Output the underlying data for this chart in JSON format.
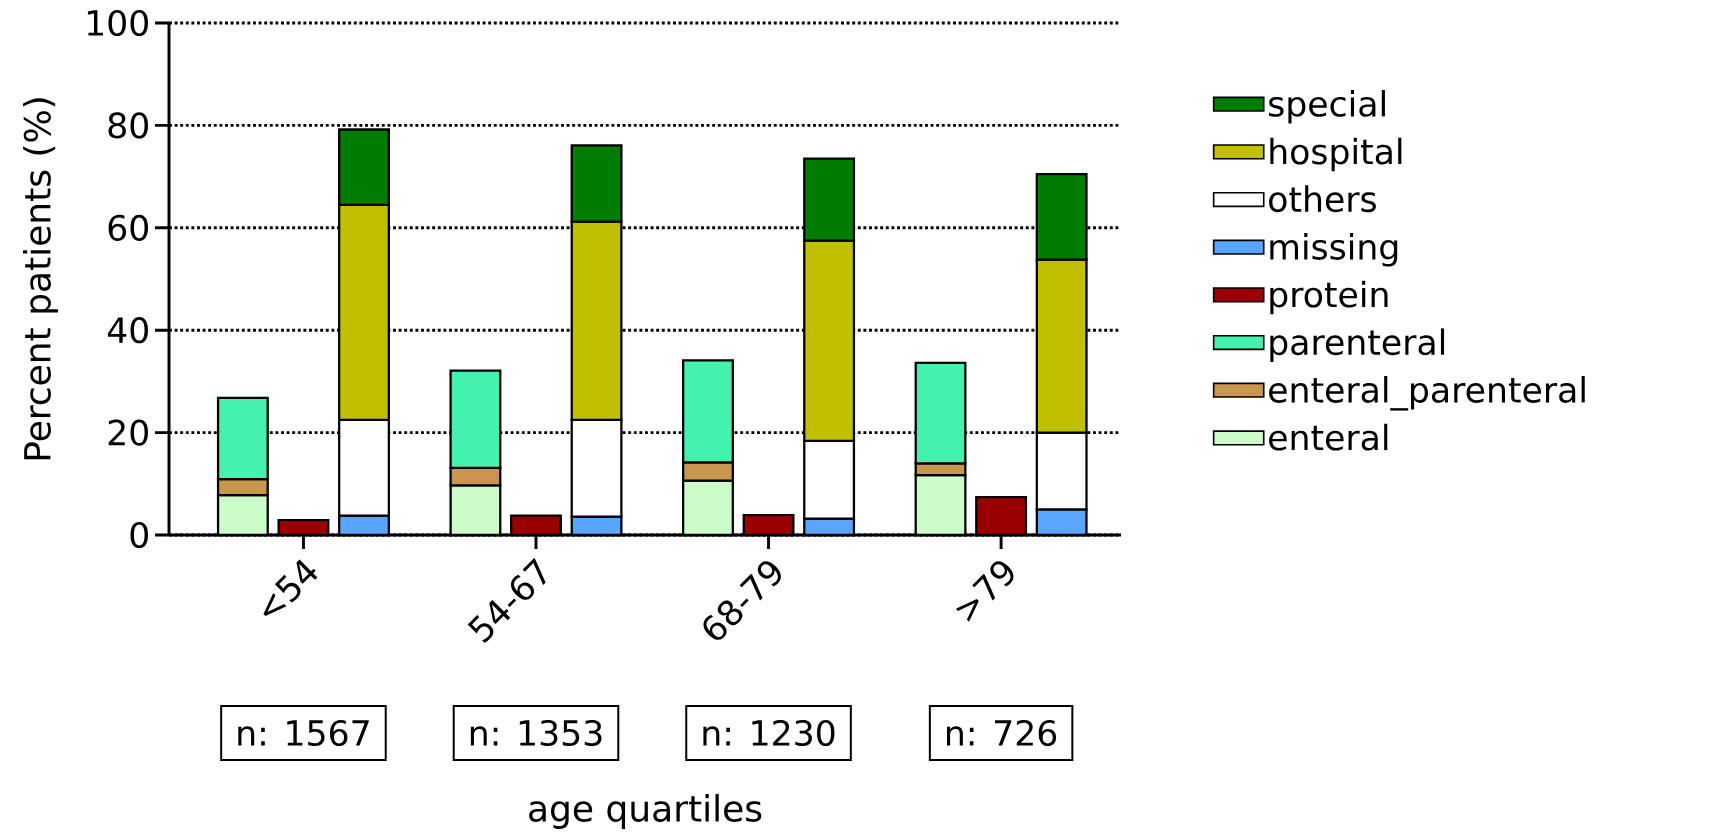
{
  "chart_data": {
    "type": "bar",
    "stacked": true,
    "xlabel": "age quartiles",
    "ylabel": "Percent patients (%)",
    "categories": [
      null,
      "<54",
      null,
      null,
      "54-67",
      null,
      null,
      "68-79",
      null,
      null,
      ">79",
      null
    ],
    "ylim": [
      0,
      100
    ],
    "yticks": [
      0,
      20,
      40,
      60,
      80,
      100
    ],
    "grid": "y",
    "legend": "right",
    "series": [
      {
        "name": "enteral",
        "color": "#ccfcca",
        "values": [
          7.8,
          null,
          null,
          9.7,
          null,
          null,
          10.6,
          null,
          null,
          11.7,
          null,
          null
        ]
      },
      {
        "name": "enteral_parenteral",
        "color": "#c8964e",
        "values": [
          3.1,
          null,
          null,
          3.4,
          null,
          null,
          3.6,
          null,
          null,
          2.3,
          null,
          null
        ]
      },
      {
        "name": "parenteral",
        "color": "#44f2ad",
        "values": [
          15.9,
          null,
          null,
          19.0,
          null,
          null,
          19.9,
          null,
          null,
          19.6,
          null,
          null
        ]
      },
      {
        "name": "protein",
        "color": "#990000",
        "values": [
          null,
          2.9,
          null,
          null,
          3.8,
          null,
          null,
          3.9,
          null,
          null,
          7.4,
          null
        ]
      },
      {
        "name": "missing",
        "color": "#5aa5ff",
        "values": [
          null,
          null,
          3.8,
          null,
          null,
          3.6,
          null,
          null,
          3.2,
          null,
          null,
          5.0
        ]
      },
      {
        "name": "others",
        "color": "#ffffff",
        "values": [
          null,
          null,
          18.7,
          null,
          null,
          18.9,
          null,
          null,
          15.2,
          null,
          null,
          15.0
        ]
      },
      {
        "name": "hospital",
        "color": "#c0c000",
        "values": [
          null,
          null,
          42.0,
          null,
          null,
          38.7,
          null,
          null,
          39.1,
          null,
          null,
          33.8
        ]
      },
      {
        "name": "special",
        "color": "#007d00",
        "values": [
          null,
          null,
          14.7,
          null,
          null,
          14.9,
          null,
          null,
          16.0,
          null,
          null,
          16.7
        ]
      }
    ],
    "annotations": [
      "n: 1567",
      "n: 1353",
      "n: 1230",
      "n: 726"
    ]
  }
}
